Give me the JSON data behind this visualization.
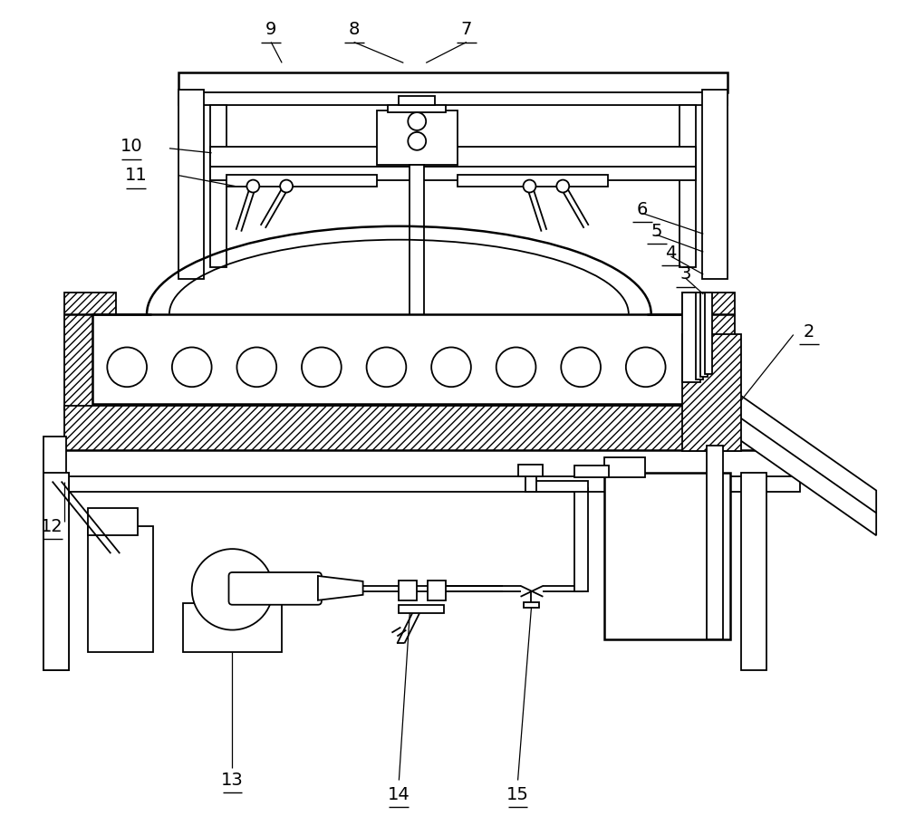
{
  "bg_color": "#ffffff",
  "line_color": "#000000",
  "fig_width": 10.0,
  "fig_height": 9.22,
  "lw": 1.3,
  "lw2": 1.8
}
